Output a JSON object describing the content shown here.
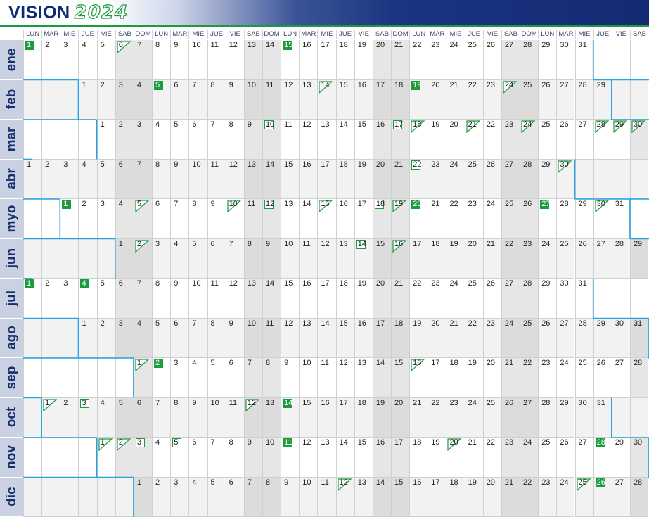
{
  "header": {
    "brand": "VISION",
    "year": "2024",
    "brand_color": "#0e2a78",
    "accent": "#1a9c3e",
    "banner_color": "#142b74"
  },
  "weekdays": [
    "LUN",
    "MAR",
    "MIE",
    "JUE",
    "VIE",
    "SAB",
    "DOM",
    "LUN",
    "MAR",
    "MIE",
    "JUE",
    "VIE",
    "SAB",
    "DOM",
    "LUN",
    "MAR",
    "MIE",
    "JUE",
    "VIE",
    "SAB",
    "DOM",
    "LUN",
    "MAR",
    "MIE",
    "JUE",
    "VIE",
    "SAB",
    "DOM",
    "LUN",
    "MAR",
    "MIE",
    "JUE",
    "VIE",
    "SAB"
  ],
  "months": [
    {
      "label": "ene",
      "offset": 0,
      "days": 31,
      "filled": [
        1,
        15
      ],
      "boxed": [],
      "triangles": [
        6
      ]
    },
    {
      "label": "feb",
      "offset": 3,
      "days": 29,
      "filled": [
        5,
        19
      ],
      "boxed": [],
      "triangles": [
        14,
        24
      ]
    },
    {
      "label": "mar",
      "offset": 4,
      "days": 31,
      "filled": [],
      "boxed": [
        10,
        17
      ],
      "triangles": [
        18,
        21,
        24,
        28,
        29,
        30
      ]
    },
    {
      "label": "abr",
      "offset": 0,
      "days": 30,
      "filled": [],
      "boxed": [
        22
      ],
      "triangles": [
        30
      ]
    },
    {
      "label": "myo",
      "offset": 2,
      "days": 31,
      "filled": [
        1,
        20,
        27
      ],
      "boxed": [
        12,
        18
      ],
      "triangles": [
        5,
        10,
        15,
        19,
        30
      ]
    },
    {
      "label": "jun",
      "offset": 5,
      "days": 30,
      "filled": [],
      "boxed": [
        14
      ],
      "triangles": [
        2,
        16
      ]
    },
    {
      "label": "jul",
      "offset": 0,
      "days": 31,
      "filled": [
        1,
        4
      ],
      "boxed": [],
      "triangles": []
    },
    {
      "label": "ago",
      "offset": 3,
      "days": 31,
      "filled": [],
      "boxed": [],
      "triangles": []
    },
    {
      "label": "sep",
      "offset": 6,
      "days": 30,
      "filled": [
        2
      ],
      "boxed": [],
      "triangles": [
        1,
        16
      ]
    },
    {
      "label": "oct",
      "offset": 1,
      "days": 31,
      "filled": [
        14
      ],
      "boxed": [
        3
      ],
      "triangles": [
        1,
        12
      ]
    },
    {
      "label": "nov",
      "offset": 4,
      "days": 30,
      "filled": [
        11,
        28
      ],
      "boxed": [
        3,
        5
      ],
      "triangles": [
        1,
        2,
        20
      ]
    },
    {
      "label": "dic",
      "offset": 6,
      "days": 31,
      "filled": [
        26
      ],
      "boxed": [],
      "triangles": [
        12,
        25
      ]
    }
  ]
}
